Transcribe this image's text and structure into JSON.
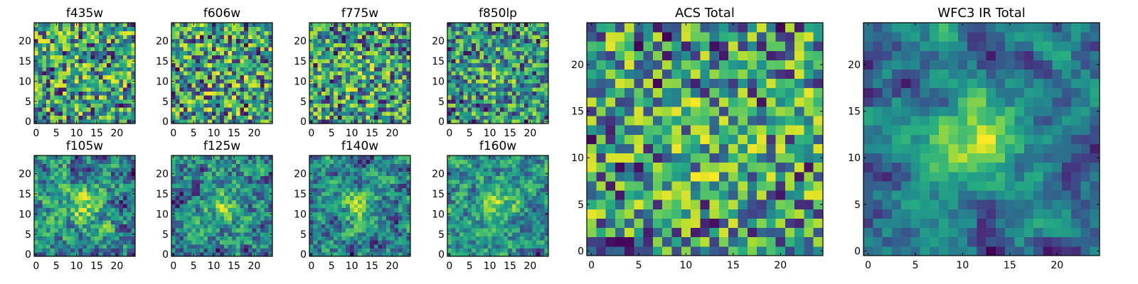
{
  "figure": {
    "colormap": "viridis",
    "grid_size": 25,
    "x_tick_labels_small": [
      "0",
      "5",
      "10",
      "15",
      "20"
    ],
    "y_tick_labels_small": [
      "0",
      "5",
      "10",
      "15",
      "20"
    ],
    "x_tick_labels_large": [
      "0",
      "5",
      "10",
      "15",
      "20"
    ],
    "y_tick_labels_large": [
      "0",
      "5",
      "10",
      "15",
      "20"
    ]
  },
  "chart_data": [
    {
      "type": "heatmap",
      "title": "f435w",
      "seed": 11,
      "blob": 0.05,
      "smooth": 0,
      "grid": false,
      "xlim": [
        0,
        24
      ],
      "ylim": [
        0,
        24
      ]
    },
    {
      "type": "heatmap",
      "title": "f606w",
      "seed": 23,
      "blob": 0.05,
      "smooth": 0,
      "grid": false,
      "xlim": [
        0,
        24
      ],
      "ylim": [
        0,
        24
      ]
    },
    {
      "type": "heatmap",
      "title": "f775w",
      "seed": 37,
      "blob": 0.1,
      "smooth": 0,
      "grid": false,
      "xlim": [
        0,
        24
      ],
      "ylim": [
        0,
        24
      ]
    },
    {
      "type": "heatmap",
      "title": "f850lp",
      "seed": 41,
      "blob": 0.2,
      "smooth": 0,
      "grid": false,
      "xlim": [
        0,
        24
      ],
      "ylim": [
        0,
        24
      ]
    },
    {
      "type": "heatmap",
      "title": "f105w",
      "seed": 53,
      "blob": 0.35,
      "smooth": 1,
      "grid": false,
      "xlim": [
        0,
        24
      ],
      "ylim": [
        0,
        24
      ]
    },
    {
      "type": "heatmap",
      "title": "f125w",
      "seed": 67,
      "blob": 0.3,
      "smooth": 1,
      "grid": false,
      "xlim": [
        0,
        24
      ],
      "ylim": [
        0,
        24
      ]
    },
    {
      "type": "heatmap",
      "title": "f140w",
      "seed": 71,
      "blob": 0.4,
      "smooth": 1,
      "grid": false,
      "xlim": [
        0,
        24
      ],
      "ylim": [
        0,
        24
      ]
    },
    {
      "type": "heatmap",
      "title": "f160w",
      "seed": 83,
      "blob": 0.45,
      "smooth": 1,
      "grid": false,
      "xlim": [
        0,
        24
      ],
      "ylim": [
        0,
        24
      ]
    },
    {
      "type": "heatmap",
      "title": "ACS Total",
      "seed": 97,
      "blob": 0.12,
      "smooth": 0,
      "grid": false,
      "xlim": [
        0,
        24
      ],
      "ylim": [
        0,
        24
      ]
    },
    {
      "type": "heatmap",
      "title": "WFC3 IR Total",
      "seed": 101,
      "blob": 0.6,
      "smooth": 2,
      "grid": false,
      "xlim": [
        0,
        24
      ],
      "ylim": [
        0,
        24
      ]
    }
  ]
}
